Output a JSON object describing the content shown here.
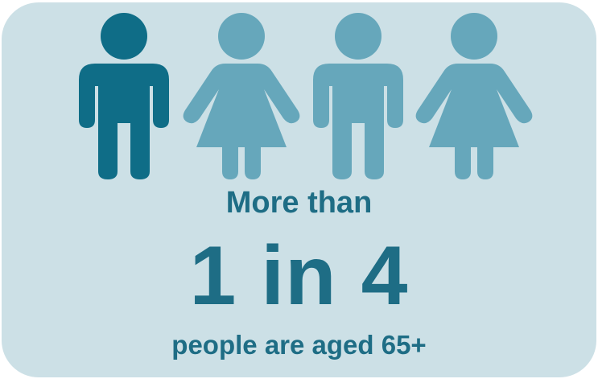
{
  "infographic": {
    "lead_text": "More than",
    "stat_text": "1 in 4",
    "tail_text": "people are aged 65+",
    "highlighted_fraction": 0.25,
    "figures": [
      {
        "icon": "male-person-icon",
        "highlighted": true
      },
      {
        "icon": "female-person-icon",
        "highlighted": false
      },
      {
        "icon": "male-person-icon",
        "highlighted": false
      },
      {
        "icon": "female-person-icon",
        "highlighted": false
      }
    ]
  },
  "colors": {
    "card_background": "#cce0e6",
    "highlight_figure": "#0f6d87",
    "other_figures": "#66a7bb",
    "text": "#1e6d85"
  }
}
